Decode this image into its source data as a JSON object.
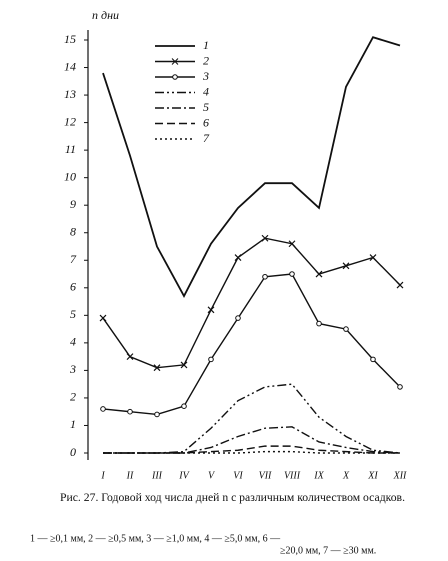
{
  "chart_data": {
    "type": "line",
    "y_label": "n дни",
    "categories": [
      "I",
      "II",
      "III",
      "IV",
      "V",
      "VI",
      "VII",
      "VIII",
      "IX",
      "X",
      "XI",
      "XII"
    ],
    "ylim": [
      0,
      15
    ],
    "yticks": [
      0,
      1,
      2,
      3,
      4,
      5,
      6,
      7,
      8,
      9,
      10,
      11,
      12,
      13,
      14,
      15
    ],
    "series": [
      {
        "name": "1",
        "color": "#111",
        "dash": "none",
        "marker": "none",
        "values": [
          13.8,
          10.8,
          7.5,
          5.7,
          7.6,
          8.9,
          9.8,
          9.8,
          8.9,
          13.3,
          15.1,
          14.8
        ]
      },
      {
        "name": "2",
        "color": "#111",
        "dash": "none",
        "marker": "x",
        "values": [
          4.9,
          3.5,
          3.1,
          3.2,
          5.2,
          7.1,
          7.8,
          7.6,
          6.5,
          6.8,
          7.1,
          6.1
        ]
      },
      {
        "name": "3",
        "color": "#111",
        "dash": "none",
        "marker": "o",
        "values": [
          1.6,
          1.5,
          1.4,
          1.7,
          3.4,
          4.9,
          6.4,
          6.5,
          4.7,
          4.5,
          3.4,
          2.4
        ]
      },
      {
        "name": "4",
        "color": "#111",
        "dash": "9 3 2 3 2 3",
        "marker": "none",
        "values": [
          0,
          0,
          0,
          0.05,
          0.9,
          1.9,
          2.4,
          2.5,
          1.3,
          0.6,
          0.1,
          0
        ]
      },
      {
        "name": "5",
        "color": "#111",
        "dash": "9 3 2 3",
        "marker": "none",
        "values": [
          0,
          0,
          0,
          0,
          0.2,
          0.6,
          0.9,
          0.95,
          0.4,
          0.2,
          0.05,
          0
        ]
      },
      {
        "name": "6",
        "color": "#111",
        "dash": "8 4",
        "marker": "none",
        "values": [
          0,
          0,
          0,
          0,
          0.05,
          0.1,
          0.25,
          0.25,
          0.1,
          0.05,
          0,
          0
        ]
      },
      {
        "name": "7",
        "color": "#111",
        "dash": "2 3",
        "marker": "none",
        "values": [
          0,
          0,
          0,
          0,
          0,
          0,
          0.05,
          0.05,
          0,
          0,
          0,
          0
        ]
      }
    ],
    "caption": "Рис. 27. Годовой ход числа дней n с различным количеством осадков.",
    "notes": [
      "1 — ≥0,1 мм,  2 — ≥0,5 мм,  3 — ≥1,0 мм,  4 — ≥5,0 мм,  6 —",
      "≥20,0 мм, 7 — ≥30 мм."
    ]
  }
}
